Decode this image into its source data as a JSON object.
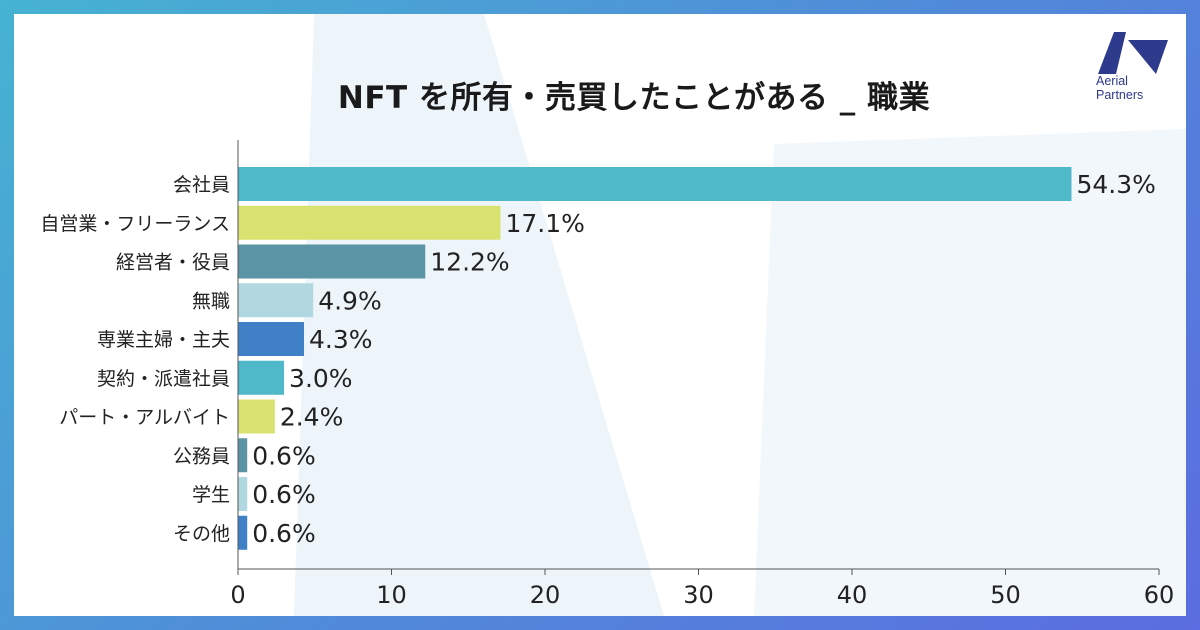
{
  "page": {
    "title": "NFT を所有・売買したことがある _ 職業",
    "logo": {
      "name": "Aerial Partners",
      "line1": "Aerial",
      "line2": "Partners",
      "color": "#2e3a8c"
    }
  },
  "chart_data": {
    "type": "bar",
    "orientation": "horizontal",
    "title": "NFT を所有・売買したことがある _ 職業",
    "xlabel": "",
    "ylabel": "",
    "xlim": [
      0,
      60
    ],
    "xticks": [
      0,
      10,
      20,
      30,
      40,
      50,
      60
    ],
    "grid": false,
    "value_suffix": "%",
    "categories": [
      "会社員",
      "自営業・フリーランス",
      "経営者・役員",
      "無職",
      "専業主婦・主夫",
      "契約・派遣社員",
      "パート・アルバイト",
      "公務員",
      "学生",
      "その他"
    ],
    "values": [
      54.3,
      17.1,
      12.2,
      4.9,
      4.3,
      3.0,
      2.4,
      0.6,
      0.6,
      0.6
    ],
    "labels": [
      "54.3%",
      "17.1%",
      "12.2%",
      "4.9%",
      "4.3%",
      "3.0%",
      "2.4%",
      "0.6%",
      "0.6%",
      "0.6%"
    ],
    "colors": [
      "#4fb8c9",
      "#d7e26f",
      "#5b95a5",
      "#b1d7e0",
      "#3f80c7",
      "#4fb8c9",
      "#d7e26f",
      "#5b95a5",
      "#b1d7e0",
      "#3f80c7"
    ]
  }
}
